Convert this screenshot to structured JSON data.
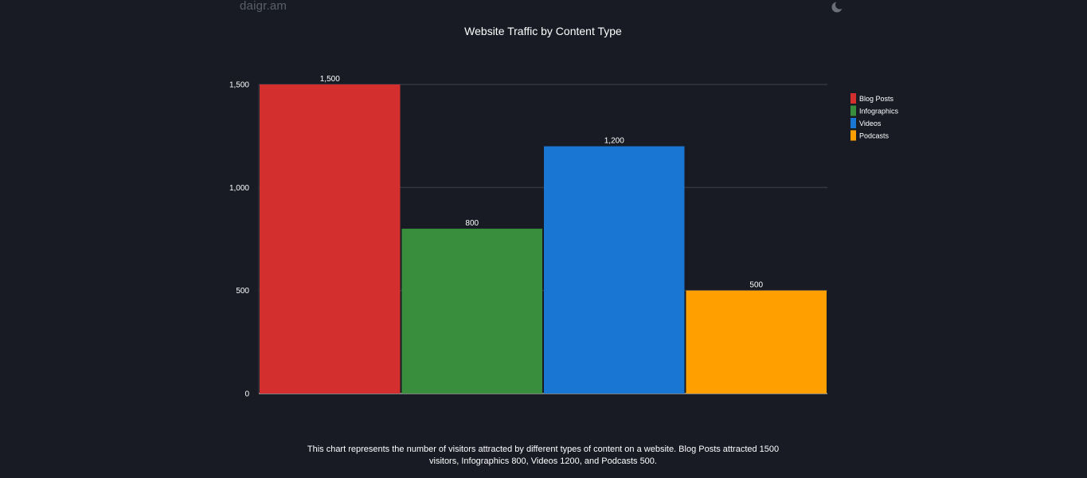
{
  "header": {
    "logo_text": "daigr.am",
    "theme_toggle_icon": "moon-icon"
  },
  "chart_data": {
    "type": "bar",
    "title": "Website Traffic by Content Type",
    "categories": [
      "Blog Posts",
      "Infographics",
      "Videos",
      "Podcasts"
    ],
    "values": [
      1500,
      800,
      1200,
      500
    ],
    "data_labels": [
      "1,500",
      "800",
      "1,200",
      "500"
    ],
    "colors": [
      "#d32f2f",
      "#388e3c",
      "#1976d2",
      "#ffa000"
    ],
    "yticks": [
      0,
      500,
      1000,
      1500
    ],
    "ytick_labels": [
      "0",
      "500",
      "1,000",
      "1,500"
    ],
    "ylim": [
      0,
      1500
    ],
    "xlabel": "",
    "ylabel": "",
    "grid": true,
    "legend_position": "top-right"
  },
  "caption": "This chart represents the number of visitors attracted by different types of content on a website. Blog Posts attracted 1500 visitors, Infographics 800, Videos 1200, and Podcasts 500."
}
